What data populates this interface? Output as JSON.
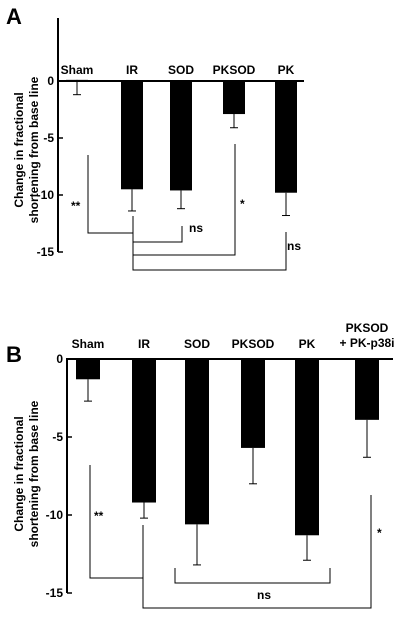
{
  "chart_data": [
    {
      "panel": "A",
      "type": "bar",
      "categories": [
        "Sham",
        "IR",
        "SOD",
        "PKSOD",
        "PK"
      ],
      "values": [
        0.1,
        -9.5,
        -9.6,
        -2.9,
        -9.8
      ],
      "errors": [
        1.3,
        1.9,
        1.6,
        1.2,
        2.0
      ],
      "ylabel_lines": [
        "Change in fractional",
        "shortening from base line"
      ],
      "ylim": [
        -15,
        0
      ],
      "yticks": [
        0,
        -5,
        -10,
        -15
      ],
      "ytick_labels": [
        "0",
        "-5",
        "-10",
        "-15"
      ],
      "significance": [
        {
          "label": "**",
          "from": "Sham",
          "to": "IR"
        },
        {
          "label": "ns",
          "from": "IR",
          "to": "SOD"
        },
        {
          "label": "*",
          "from": "IR",
          "to": "PKSOD"
        },
        {
          "label": "ns",
          "from": "IR",
          "to": "PK"
        }
      ]
    },
    {
      "panel": "B",
      "type": "bar",
      "categories": [
        "Sham",
        "IR",
        "SOD",
        "PKSOD",
        "PK",
        "PKSOD\n+ PK-p38i"
      ],
      "category_lines": [
        [
          "Sham"
        ],
        [
          "IR"
        ],
        [
          "SOD"
        ],
        [
          "PKSOD"
        ],
        [
          "PK"
        ],
        [
          "PKSOD",
          "+ PK-p38i"
        ]
      ],
      "values": [
        -1.3,
        -9.2,
        -10.6,
        -5.7,
        -11.3,
        -3.9
      ],
      "errors": [
        1.4,
        1.0,
        2.6,
        2.3,
        1.6,
        2.4
      ],
      "ylabel_lines": [
        "Change in fractional",
        "shortening from base line"
      ],
      "ylim": [
        -15,
        0
      ],
      "yticks": [
        0,
        -5,
        -10,
        -15
      ],
      "ytick_labels": [
        "0",
        "-5",
        "-10",
        "-15"
      ],
      "significance": [
        {
          "label": "**",
          "from": "Sham",
          "to": "IR"
        },
        {
          "label": "ns",
          "from": "SOD",
          "to": "PK"
        },
        {
          "label": "*",
          "from": "IR",
          "to": "PKSOD\n+ PK-p38i"
        }
      ]
    }
  ]
}
